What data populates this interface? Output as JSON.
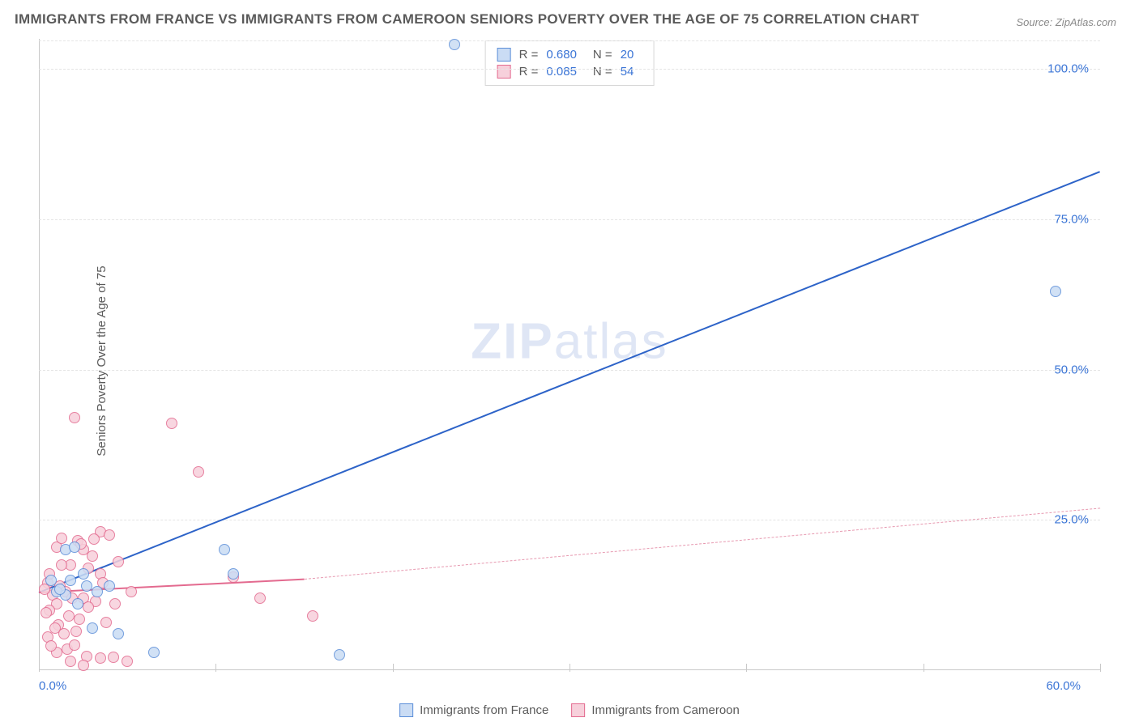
{
  "title": "IMMIGRANTS FROM FRANCE VS IMMIGRANTS FROM CAMEROON SENIORS POVERTY OVER THE AGE OF 75 CORRELATION CHART",
  "source": "Source: ZipAtlas.com",
  "ylabel": "Seniors Poverty Over the Age of 75",
  "watermark_a": "ZIP",
  "watermark_b": "atlas",
  "chart": {
    "type": "scatter",
    "xlim": [
      0,
      60
    ],
    "ylim": [
      0,
      105
    ],
    "xtick_positions": [
      0,
      10,
      20,
      30,
      40,
      50,
      60
    ],
    "xtick_labels_shown": {
      "0": "0.0%",
      "60": "60.0%"
    },
    "ytick_positions": [
      25,
      50,
      75,
      100
    ],
    "ytick_labels": [
      "25.0%",
      "50.0%",
      "75.0%",
      "100.0%"
    ],
    "grid_color": "#e4e4e4",
    "axis_color": "#c9c9c9",
    "background_color": "#ffffff",
    "marker_radius": 7,
    "marker_stroke_width": 1.2,
    "series": [
      {
        "name": "Immigrants from France",
        "fill": "#cadcf4",
        "stroke": "#5b8ed8",
        "r_value": "0.680",
        "n_value": "20",
        "regression": {
          "x1": 0,
          "y1": 13,
          "x2": 60,
          "y2": 83,
          "color": "#2d63c8",
          "width": 2.5
        },
        "points": [
          [
            23.5,
            104
          ],
          [
            57.5,
            63
          ],
          [
            17.0,
            2.5
          ],
          [
            11.0,
            16
          ],
          [
            10.5,
            20
          ],
          [
            3.0,
            7
          ],
          [
            4.5,
            6
          ],
          [
            6.5,
            3
          ],
          [
            1.5,
            20
          ],
          [
            2.0,
            20.5
          ],
          [
            4.0,
            14
          ],
          [
            2.5,
            16
          ],
          [
            1.8,
            15
          ],
          [
            1.0,
            13
          ],
          [
            1.5,
            12.5
          ],
          [
            0.7,
            15
          ],
          [
            2.2,
            11
          ],
          [
            1.2,
            13.5
          ],
          [
            3.3,
            13
          ],
          [
            2.7,
            14
          ]
        ]
      },
      {
        "name": "Immigrants from Cameroon",
        "fill": "#f7d0db",
        "stroke": "#e36a8f",
        "r_value": "0.085",
        "n_value": "54",
        "regression_solid": {
          "x1": 0,
          "y1": 13,
          "x2": 15,
          "y2": 15.2,
          "color": "#e36a8f",
          "width": 2.5
        },
        "regression_dashed": {
          "x1": 15,
          "y1": 15.2,
          "x2": 60,
          "y2": 27,
          "color": "#e799b0",
          "width": 1.5
        },
        "points": [
          [
            2.0,
            42
          ],
          [
            7.5,
            41
          ],
          [
            9.0,
            33
          ],
          [
            15.5,
            9
          ],
          [
            12.5,
            12
          ],
          [
            11.0,
            15.5
          ],
          [
            3.5,
            23
          ],
          [
            4.0,
            22.5
          ],
          [
            2.5,
            20
          ],
          [
            3.0,
            19
          ],
          [
            2.2,
            21.5
          ],
          [
            1.0,
            20.5
          ],
          [
            1.8,
            17.5
          ],
          [
            3.5,
            16
          ],
          [
            2.8,
            17
          ],
          [
            1.3,
            17.5
          ],
          [
            4.5,
            18
          ],
          [
            0.5,
            14.5
          ],
          [
            1.2,
            14
          ],
          [
            1.5,
            13
          ],
          [
            1.9,
            12
          ],
          [
            0.8,
            12.5
          ],
          [
            2.5,
            12
          ],
          [
            3.2,
            11.5
          ],
          [
            1.0,
            11
          ],
          [
            0.6,
            10
          ],
          [
            0.4,
            9.5
          ],
          [
            1.7,
            9
          ],
          [
            2.3,
            8.5
          ],
          [
            3.8,
            8
          ],
          [
            1.1,
            7.5
          ],
          [
            0.9,
            7
          ],
          [
            1.4,
            6
          ],
          [
            2.1,
            6.5
          ],
          [
            0.5,
            5.5
          ],
          [
            3.5,
            2
          ],
          [
            2.7,
            2.3
          ],
          [
            5.0,
            1.5
          ],
          [
            4.2,
            2.2
          ],
          [
            1.8,
            1.5
          ],
          [
            2.5,
            0.8
          ],
          [
            1.0,
            3
          ],
          [
            1.6,
            3.5
          ],
          [
            0.7,
            4
          ],
          [
            2.0,
            4.2
          ],
          [
            0.3,
            13.5
          ],
          [
            0.6,
            16
          ],
          [
            2.4,
            21
          ],
          [
            3.1,
            21.8
          ],
          [
            1.3,
            22
          ],
          [
            4.3,
            11
          ],
          [
            2.8,
            10.5
          ],
          [
            5.2,
            13
          ],
          [
            3.6,
            14.5
          ]
        ]
      }
    ]
  },
  "legend": {
    "series1": "Immigrants from France",
    "series2": "Immigrants from Cameroon"
  }
}
